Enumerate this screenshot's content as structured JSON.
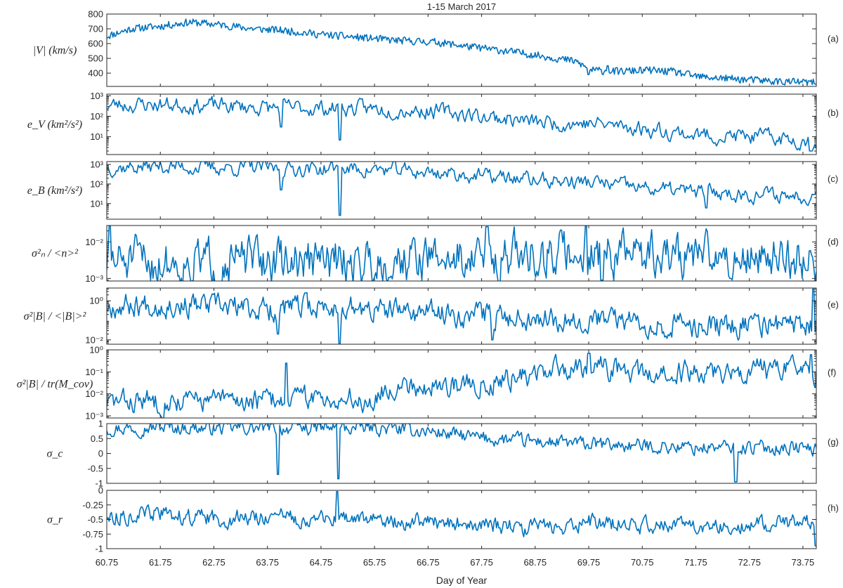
{
  "chart_data": {
    "type": "line",
    "title": "1-15 March 2017",
    "xlabel": "Day of Year",
    "xlim": [
      60.75,
      74.0
    ],
    "x_tick_labels": [
      "60.75",
      "61.75",
      "62.75",
      "63.75",
      "64.75",
      "65.75",
      "66.75",
      "67.75",
      "68.75",
      "69.75",
      "70.75",
      "71.75",
      "72.75",
      "73.75"
    ],
    "x_ticks": [
      60.75,
      61.75,
      62.75,
      63.75,
      64.75,
      65.75,
      66.75,
      67.75,
      68.75,
      69.75,
      70.75,
      71.75,
      72.75,
      73.75
    ],
    "line_color": "#0072BD",
    "panels": [
      {
        "id": "a",
        "tag": "(a)",
        "ylabel": "|V| (km/s)",
        "scale": "linear",
        "ylim": [
          310,
          800
        ],
        "ticks": [
          400,
          500,
          600,
          700,
          800
        ],
        "tick_labels": [
          "400",
          "500",
          "600",
          "700",
          "800"
        ],
        "noise": 25,
        "seed": 11,
        "dips": [
          [
            69.75,
            390
          ],
          [
            70.75,
            400
          ],
          [
            70.1,
            450
          ]
        ],
        "trend": [
          [
            60.75,
            650
          ],
          [
            61.2,
            700
          ],
          [
            61.8,
            720
          ],
          [
            62.3,
            745
          ],
          [
            62.8,
            730
          ],
          [
            63.5,
            700
          ],
          [
            64.0,
            690
          ],
          [
            64.8,
            660
          ],
          [
            65.5,
            640
          ],
          [
            66.2,
            620
          ],
          [
            66.9,
            610
          ],
          [
            67.5,
            580
          ],
          [
            68.2,
            550
          ],
          [
            68.8,
            520
          ],
          [
            69.5,
            480
          ],
          [
            69.8,
            420
          ],
          [
            70.3,
            410
          ],
          [
            70.8,
            420
          ],
          [
            71.3,
            410
          ],
          [
            71.8,
            375
          ],
          [
            72.5,
            360
          ],
          [
            73.2,
            345
          ],
          [
            74.0,
            335
          ]
        ],
        "n": 700,
        "smooth": 0.1
      },
      {
        "id": "b",
        "tag": "(b)",
        "ylabel": "e_V (km²/s²)",
        "scale": "log",
        "ylim": [
          1.35,
          1200
        ],
        "ticks": [
          10,
          100,
          1000
        ],
        "tick_labels": [
          "10¹",
          "10²",
          "10³"
        ],
        "noise": 0.32,
        "seed": 23,
        "dips": [
          [
            65.1,
            7
          ],
          [
            64.0,
            30
          ],
          [
            73.9,
            2
          ]
        ],
        "trend": [
          [
            60.75,
            350
          ],
          [
            61.75,
            380
          ],
          [
            62.75,
            330
          ],
          [
            63.75,
            260
          ],
          [
            64.75,
            250
          ],
          [
            65.75,
            230
          ],
          [
            66.75,
            190
          ],
          [
            67.75,
            100
          ],
          [
            68.75,
            50
          ],
          [
            69.75,
            45
          ],
          [
            70.75,
            25
          ],
          [
            71.75,
            12
          ],
          [
            72.75,
            10
          ],
          [
            73.75,
            7
          ],
          [
            74.0,
            6
          ]
        ],
        "n": 520,
        "smooth": 0.55
      },
      {
        "id": "c",
        "tag": "(c)",
        "ylabel": "e_B (km²/s²)",
        "scale": "log",
        "ylim": [
          1.6,
          1400
        ],
        "ticks": [
          10,
          100,
          1000
        ],
        "tick_labels": [
          "10¹",
          "10²",
          "10³"
        ],
        "noise": 0.32,
        "seed": 37,
        "dips": [
          [
            65.1,
            2.5
          ],
          [
            64.0,
            50
          ],
          [
            71.95,
            6
          ]
        ],
        "trend": [
          [
            60.75,
            700
          ],
          [
            61.75,
            800
          ],
          [
            62.75,
            700
          ],
          [
            63.75,
            650
          ],
          [
            64.75,
            600
          ],
          [
            65.75,
            550
          ],
          [
            66.75,
            400
          ],
          [
            67.75,
            250
          ],
          [
            68.75,
            160
          ],
          [
            69.75,
            120
          ],
          [
            70.75,
            60
          ],
          [
            71.75,
            40
          ],
          [
            72.75,
            30
          ],
          [
            73.75,
            25
          ],
          [
            74.0,
            30
          ]
        ],
        "n": 520,
        "smooth": 0.55
      },
      {
        "id": "d",
        "tag": "(d)",
        "ylabel": "σ²ₙ / <n>²",
        "scale": "log",
        "ylim": [
          0.00085,
          0.028
        ],
        "ticks": [
          0.001,
          0.01
        ],
        "tick_labels": [
          "10⁻³",
          "10⁻²"
        ],
        "noise": 0.5,
        "seed": 51,
        "dips": [
          [
            60.8,
            0.028
          ],
          [
            67.85,
            0.026
          ],
          [
            69.7,
            0.027
          ],
          [
            70.0,
            0.0009
          ],
          [
            72.4,
            0.001
          ]
        ],
        "trend": [
          [
            60.75,
            0.003
          ],
          [
            62.0,
            0.0028
          ],
          [
            63.5,
            0.003
          ],
          [
            65.0,
            0.0028
          ],
          [
            66.5,
            0.0035
          ],
          [
            68.0,
            0.004
          ],
          [
            69.75,
            0.005
          ],
          [
            71.0,
            0.0042
          ],
          [
            72.5,
            0.004
          ],
          [
            74.0,
            0.0035
          ]
        ],
        "n": 600,
        "smooth": 0.55
      },
      {
        "id": "e",
        "tag": "(e)",
        "ylabel": "σ²|B| / <|B|>²",
        "scale": "log",
        "ylim": [
          0.006,
          4.5
        ],
        "ticks": [
          0.01,
          1
        ],
        "tick_labels": [
          "10⁻²",
          "10⁰"
        ],
        "noise": 0.5,
        "seed": 67,
        "dips": [
          [
            65.1,
            0.006
          ],
          [
            63.95,
            0.02
          ],
          [
            67.95,
            0.01
          ],
          [
            73.95,
            4
          ]
        ],
        "trend": [
          [
            60.75,
            0.6
          ],
          [
            61.75,
            0.7
          ],
          [
            62.75,
            0.5
          ],
          [
            63.75,
            0.35
          ],
          [
            64.75,
            0.5
          ],
          [
            65.75,
            0.3
          ],
          [
            66.75,
            0.25
          ],
          [
            67.75,
            0.2
          ],
          [
            68.75,
            0.15
          ],
          [
            69.75,
            0.12
          ],
          [
            70.75,
            0.08
          ],
          [
            71.75,
            0.05
          ],
          [
            72.75,
            0.06
          ],
          [
            73.75,
            0.05
          ]
        ],
        "n": 600,
        "smooth": 0.55
      },
      {
        "id": "f",
        "tag": "(f)",
        "ylabel": "σ²|B| / tr(M_cov)",
        "scale": "log",
        "ylim": [
          0.0008,
          1.0
        ],
        "ticks": [
          0.001,
          0.01,
          0.1,
          1
        ],
        "tick_labels": [
          "10⁻³",
          "10⁻²",
          "10⁻¹",
          "10⁰"
        ],
        "noise": 0.42,
        "seed": 83,
        "dips": [
          [
            64.1,
            0.25
          ],
          [
            69.75,
            0.7
          ],
          [
            73.9,
            0.6
          ]
        ],
        "trend": [
          [
            60.75,
            0.004
          ],
          [
            61.75,
            0.005
          ],
          [
            62.75,
            0.005
          ],
          [
            63.75,
            0.005
          ],
          [
            64.75,
            0.007
          ],
          [
            65.75,
            0.005
          ],
          [
            66.3,
            0.03
          ],
          [
            66.75,
            0.02
          ],
          [
            67.75,
            0.03
          ],
          [
            68.75,
            0.07
          ],
          [
            69.75,
            0.2
          ],
          [
            70.75,
            0.06
          ],
          [
            71.75,
            0.1
          ],
          [
            72.75,
            0.12
          ],
          [
            73.75,
            0.1
          ],
          [
            74.0,
            0.08
          ]
        ],
        "n": 600,
        "smooth": 0.55
      },
      {
        "id": "g",
        "tag": "(g)",
        "ylabel": "σ_c",
        "scale": "linear",
        "ylim": [
          -1,
          1
        ],
        "ticks": [
          -1,
          -0.5,
          0,
          0.5,
          1
        ],
        "tick_labels": [
          "-1",
          "-0.5",
          "0",
          "0.5",
          "1"
        ],
        "noise": 0.2,
        "seed": 97,
        "dips": [
          [
            63.95,
            -0.7
          ],
          [
            65.08,
            -0.85
          ],
          [
            72.5,
            -0.95
          ]
        ],
        "trend": [
          [
            60.75,
            0.85
          ],
          [
            61.75,
            0.88
          ],
          [
            62.75,
            0.85
          ],
          [
            63.75,
            0.85
          ],
          [
            64.75,
            0.85
          ],
          [
            65.75,
            0.85
          ],
          [
            66.75,
            0.75
          ],
          [
            67.75,
            0.5
          ],
          [
            68.75,
            0.4
          ],
          [
            69.75,
            0.3
          ],
          [
            70.75,
            0.25
          ],
          [
            71.75,
            0.2
          ],
          [
            72.75,
            0.2
          ],
          [
            73.75,
            0.2
          ],
          [
            74.0,
            0.1
          ]
        ],
        "n": 600,
        "smooth": 0.5
      },
      {
        "id": "h",
        "tag": "(h)",
        "ylabel": "σ_r",
        "scale": "linear",
        "ylim": [
          -1,
          0
        ],
        "ticks": [
          -1,
          -0.75,
          -0.5,
          -0.25,
          0
        ],
        "tick_labels": [
          "-1",
          "-0.75",
          "-0.5",
          "-0.25",
          "0"
        ],
        "noise": 0.12,
        "seed": 113,
        "dips": [
          [
            65.05,
            -0.02
          ],
          [
            74.0,
            -0.95
          ]
        ],
        "trend": [
          [
            60.75,
            -0.45
          ],
          [
            61.75,
            -0.4
          ],
          [
            62.75,
            -0.5
          ],
          [
            63.75,
            -0.45
          ],
          [
            64.75,
            -0.5
          ],
          [
            65.75,
            -0.5
          ],
          [
            66.75,
            -0.55
          ],
          [
            67.75,
            -0.6
          ],
          [
            68.75,
            -0.65
          ],
          [
            69.75,
            -0.55
          ],
          [
            70.75,
            -0.6
          ],
          [
            71.75,
            -0.6
          ],
          [
            72.75,
            -0.6
          ],
          [
            73.75,
            -0.55
          ]
        ],
        "n": 600,
        "smooth": 0.5
      }
    ]
  }
}
